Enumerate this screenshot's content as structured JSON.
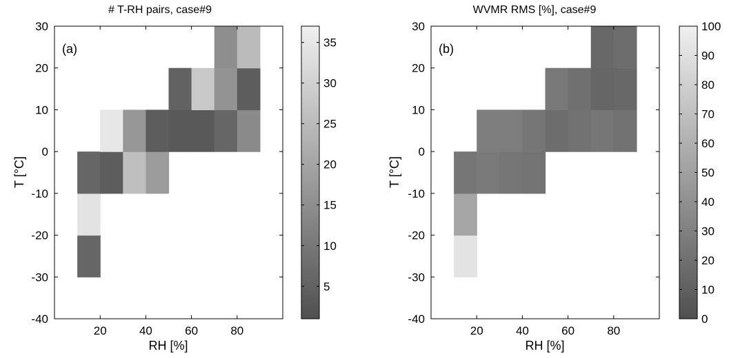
{
  "chart_data": [
    {
      "type": "heatmap",
      "title": "# T-RH pairs, case#9",
      "panel_label": "(a)",
      "xlabel": "RH [%]",
      "ylabel": "T [°C]",
      "xlim": [
        0,
        100
      ],
      "ylim": [
        -40,
        30
      ],
      "xticks": [
        20,
        40,
        60,
        80
      ],
      "yticks": [
        -40,
        -30,
        -20,
        -10,
        0,
        10,
        20,
        30
      ],
      "colorbar": {
        "min": 1,
        "max": 37,
        "ticks": [
          5,
          10,
          15,
          20,
          25,
          30,
          35
        ]
      },
      "cells": [
        {
          "rh": 15,
          "t": -25,
          "value": 6
        },
        {
          "rh": 15,
          "t": -15,
          "value": 34
        },
        {
          "rh": 15,
          "t": -5,
          "value": 6
        },
        {
          "rh": 25,
          "t": -5,
          "value": 4
        },
        {
          "rh": 25,
          "t": 5,
          "value": 35
        },
        {
          "rh": 35,
          "t": -5,
          "value": 26
        },
        {
          "rh": 35,
          "t": 5,
          "value": 17
        },
        {
          "rh": 45,
          "t": -5,
          "value": 18
        },
        {
          "rh": 45,
          "t": 5,
          "value": 4
        },
        {
          "rh": 55,
          "t": 5,
          "value": 3
        },
        {
          "rh": 55,
          "t": 15,
          "value": 5
        },
        {
          "rh": 65,
          "t": 5,
          "value": 3
        },
        {
          "rh": 65,
          "t": 15,
          "value": 28
        },
        {
          "rh": 75,
          "t": 5,
          "value": 6
        },
        {
          "rh": 75,
          "t": 15,
          "value": 16
        },
        {
          "rh": 75,
          "t": 25,
          "value": 15
        },
        {
          "rh": 85,
          "t": 5,
          "value": 14
        },
        {
          "rh": 85,
          "t": 15,
          "value": 4
        },
        {
          "rh": 85,
          "t": 25,
          "value": 25
        }
      ]
    },
    {
      "type": "heatmap",
      "title": "WVMR RMS [%], case#9",
      "panel_label": "(b)",
      "xlabel": "RH [%]",
      "ylabel": "T [°C]",
      "xlim": [
        0,
        100
      ],
      "ylim": [
        -40,
        30
      ],
      "xticks": [
        20,
        40,
        60,
        80
      ],
      "yticks": [
        -40,
        -30,
        -20,
        -10,
        0,
        10,
        20,
        30
      ],
      "colorbar": {
        "min": 0,
        "max": 100,
        "ticks": [
          0,
          10,
          20,
          30,
          40,
          50,
          60,
          70,
          80,
          90,
          100
        ]
      },
      "cells": [
        {
          "rh": 15,
          "t": -25,
          "value": 92
        },
        {
          "rh": 15,
          "t": -15,
          "value": 53
        },
        {
          "rh": 15,
          "t": -5,
          "value": 24
        },
        {
          "rh": 25,
          "t": -5,
          "value": 26
        },
        {
          "rh": 25,
          "t": 5,
          "value": 28
        },
        {
          "rh": 35,
          "t": -5,
          "value": 24
        },
        {
          "rh": 35,
          "t": 5,
          "value": 28
        },
        {
          "rh": 45,
          "t": -5,
          "value": 22
        },
        {
          "rh": 45,
          "t": 5,
          "value": 24
        },
        {
          "rh": 55,
          "t": 5,
          "value": 18
        },
        {
          "rh": 55,
          "t": 15,
          "value": 25
        },
        {
          "rh": 65,
          "t": 5,
          "value": 21
        },
        {
          "rh": 65,
          "t": 15,
          "value": 20
        },
        {
          "rh": 75,
          "t": 5,
          "value": 24
        },
        {
          "rh": 75,
          "t": 15,
          "value": 14
        },
        {
          "rh": 75,
          "t": 25,
          "value": 15
        },
        {
          "rh": 85,
          "t": 5,
          "value": 21
        },
        {
          "rh": 85,
          "t": 15,
          "value": 15
        },
        {
          "rh": 85,
          "t": 25,
          "value": 18
        }
      ]
    }
  ]
}
